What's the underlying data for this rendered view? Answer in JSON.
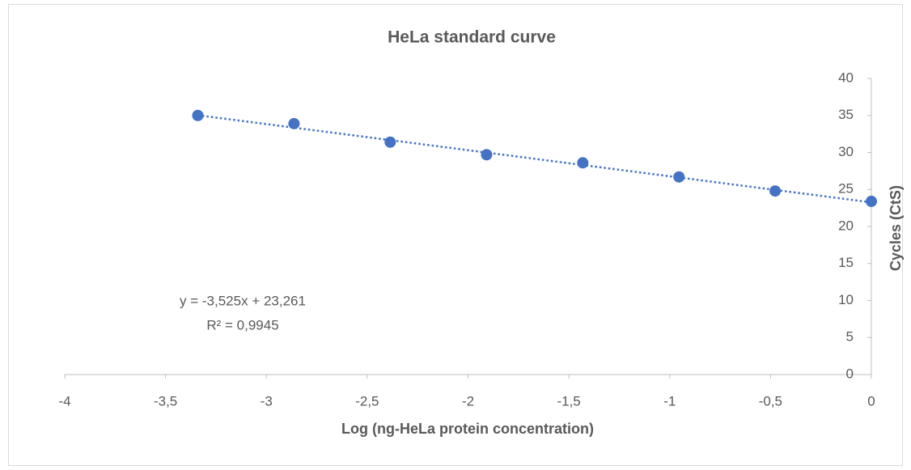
{
  "chart_data": {
    "type": "scatter",
    "title": "HeLa standard curve",
    "xlabel": "Log (ng-HeLa protein concentration)",
    "ylabel": "Cycles (CtS)",
    "series": [
      {
        "name": "HeLa",
        "color": "#4472c4",
        "x": [
          -3.34,
          -2.863,
          -2.386,
          -1.908,
          -1.431,
          -0.954,
          -0.477,
          0
        ],
        "values": [
          35.0,
          33.9,
          31.4,
          29.7,
          28.6,
          26.7,
          24.8,
          23.4
        ]
      }
    ],
    "trendline": {
      "slope": -3.525,
      "intercept": 23.261,
      "style": "dotted"
    },
    "annotations": [
      "y = -3,525x + 23,261",
      "R² = 0,9945"
    ],
    "xlim": [
      -4,
      0
    ],
    "ylim": [
      0,
      40
    ],
    "xticks": [
      -4,
      {
        "value": -3.5,
        "label": "-3,5"
      },
      -3,
      {
        "value": -2.5,
        "label": "-2,5"
      },
      -2,
      {
        "value": -1.5,
        "label": "-1,5"
      },
      -1,
      {
        "value": -0.5,
        "label": "-0,5"
      },
      0
    ],
    "yticks": [
      0,
      5,
      10,
      15,
      20,
      25,
      30,
      35,
      40
    ],
    "grid": false
  }
}
